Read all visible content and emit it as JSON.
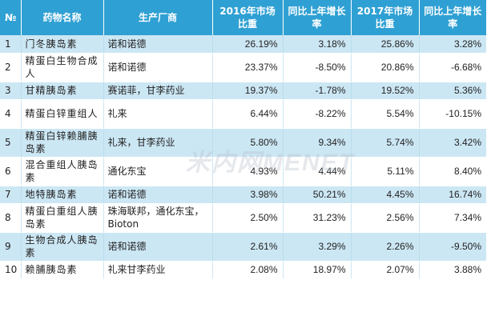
{
  "headers": [
    "№",
    "药物名称",
    "生产厂商",
    "2016年市场比重",
    "同比上年增长率",
    "2017年市场比重",
    "同比上年增长率"
  ],
  "rows": [
    {
      "no": "1",
      "name": "门冬胰岛素",
      "maker": "诺和诺德",
      "share2016": "26.19%",
      "growth2016": "3.18%",
      "share2017": "25.86%",
      "growth2017": "3.28%"
    },
    {
      "no": "2",
      "name": "精蛋白生物合成人",
      "maker": "诺和诺德",
      "share2016": "23.37%",
      "growth2016": "-8.50%",
      "share2017": "20.86%",
      "growth2017": "-6.68%"
    },
    {
      "no": "3",
      "name": "甘精胰岛素",
      "maker": "赛诺菲，甘李药业",
      "share2016": "19.37%",
      "growth2016": "-1.78%",
      "share2017": "19.52%",
      "growth2017": "5.36%"
    },
    {
      "no": "4",
      "name": "精蛋白锌重组人",
      "maker": "礼来",
      "share2016": "6.44%",
      "growth2016": "-8.22%",
      "share2017": "5.54%",
      "growth2017": "-10.15%"
    },
    {
      "no": "5",
      "name": "精蛋白锌赖脯胰岛素",
      "maker": "礼来，甘李药业",
      "share2016": "5.80%",
      "growth2016": "9.34%",
      "share2017": "5.74%",
      "growth2017": "3.42%"
    },
    {
      "no": "6",
      "name": "混合重组人胰岛素",
      "maker": "通化东宝",
      "share2016": "4.93%",
      "growth2016": "4.44%",
      "share2017": "5.11%",
      "growth2017": "8.40%"
    },
    {
      "no": "7",
      "name": "地特胰岛素",
      "maker": "诺和诺德",
      "share2016": "3.98%",
      "growth2016": "50.21%",
      "share2017": "4.45%",
      "growth2017": "16.74%"
    },
    {
      "no": "8",
      "name": "精蛋白重组人胰岛素",
      "maker": "珠海联邦，通化东宝，Bioton",
      "share2016": "2.50%",
      "growth2016": "31.23%",
      "share2017": "2.56%",
      "growth2017": "7.34%"
    },
    {
      "no": "9",
      "name": "生物合成人胰岛素",
      "maker": "诺和诺德",
      "share2016": "2.61%",
      "growth2016": "3.29%",
      "share2017": "2.26%",
      "growth2017": "-9.50%"
    },
    {
      "no": "10",
      "name": "赖脯胰岛素",
      "maker": "礼来甘李药业",
      "share2016": "2.08%",
      "growth2016": "18.97%",
      "share2017": "2.07%",
      "growth2017": "3.88%"
    }
  ],
  "watermark": "米内网MENET"
}
